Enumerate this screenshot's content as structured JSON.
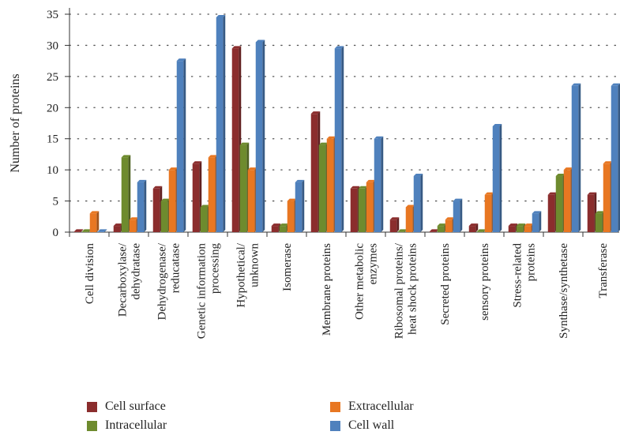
{
  "chart_data": {
    "type": "bar",
    "ylabel": "Number of proteins",
    "ylim": [
      0,
      35
    ],
    "yticks": [
      0,
      5,
      10,
      15,
      20,
      25,
      30,
      35
    ],
    "grid": "horizontal dotted",
    "legend_position": "bottom",
    "categories": [
      [
        "Cell division"
      ],
      [
        "Decarboxylase/",
        "dehydratase"
      ],
      [
        "Dehydrogenase/",
        "reducatase"
      ],
      [
        "Genetic information",
        "processing"
      ],
      [
        "Hypothetical/",
        "unknown"
      ],
      [
        "Isomerase"
      ],
      [
        "Membrane proteins"
      ],
      [
        "Other metabolic",
        "enzymes"
      ],
      [
        "Ribosomal proteins/",
        "heat shock proteins"
      ],
      [
        "Secreted proteins"
      ],
      [
        "sensory proteins"
      ],
      [
        "Stress-related",
        "proteins"
      ],
      [
        "Synthase/synthetase"
      ],
      [
        "Transferase"
      ]
    ],
    "series": [
      {
        "name": "Cell surface",
        "color": "#8B2D2D",
        "values": [
          0,
          1,
          7,
          11,
          29.5,
          1,
          19,
          7,
          2,
          0,
          1,
          1,
          6,
          6
        ]
      },
      {
        "name": "Intracellular",
        "color": "#6E8B2E",
        "values": [
          0,
          12,
          5,
          4,
          14,
          1,
          14,
          7,
          0,
          1,
          0,
          1,
          9,
          3
        ]
      },
      {
        "name": "Extracellular",
        "color": "#E87722",
        "values": [
          3,
          2,
          10,
          12,
          10,
          5,
          15,
          8,
          4,
          2,
          6,
          1,
          10,
          11
        ]
      },
      {
        "name": "Cell wall",
        "color": "#4F81BD",
        "values": [
          0,
          8,
          27.5,
          34.5,
          30.5,
          8,
          29.5,
          15,
          9,
          5,
          17,
          3,
          23.5,
          23.5
        ]
      }
    ]
  }
}
